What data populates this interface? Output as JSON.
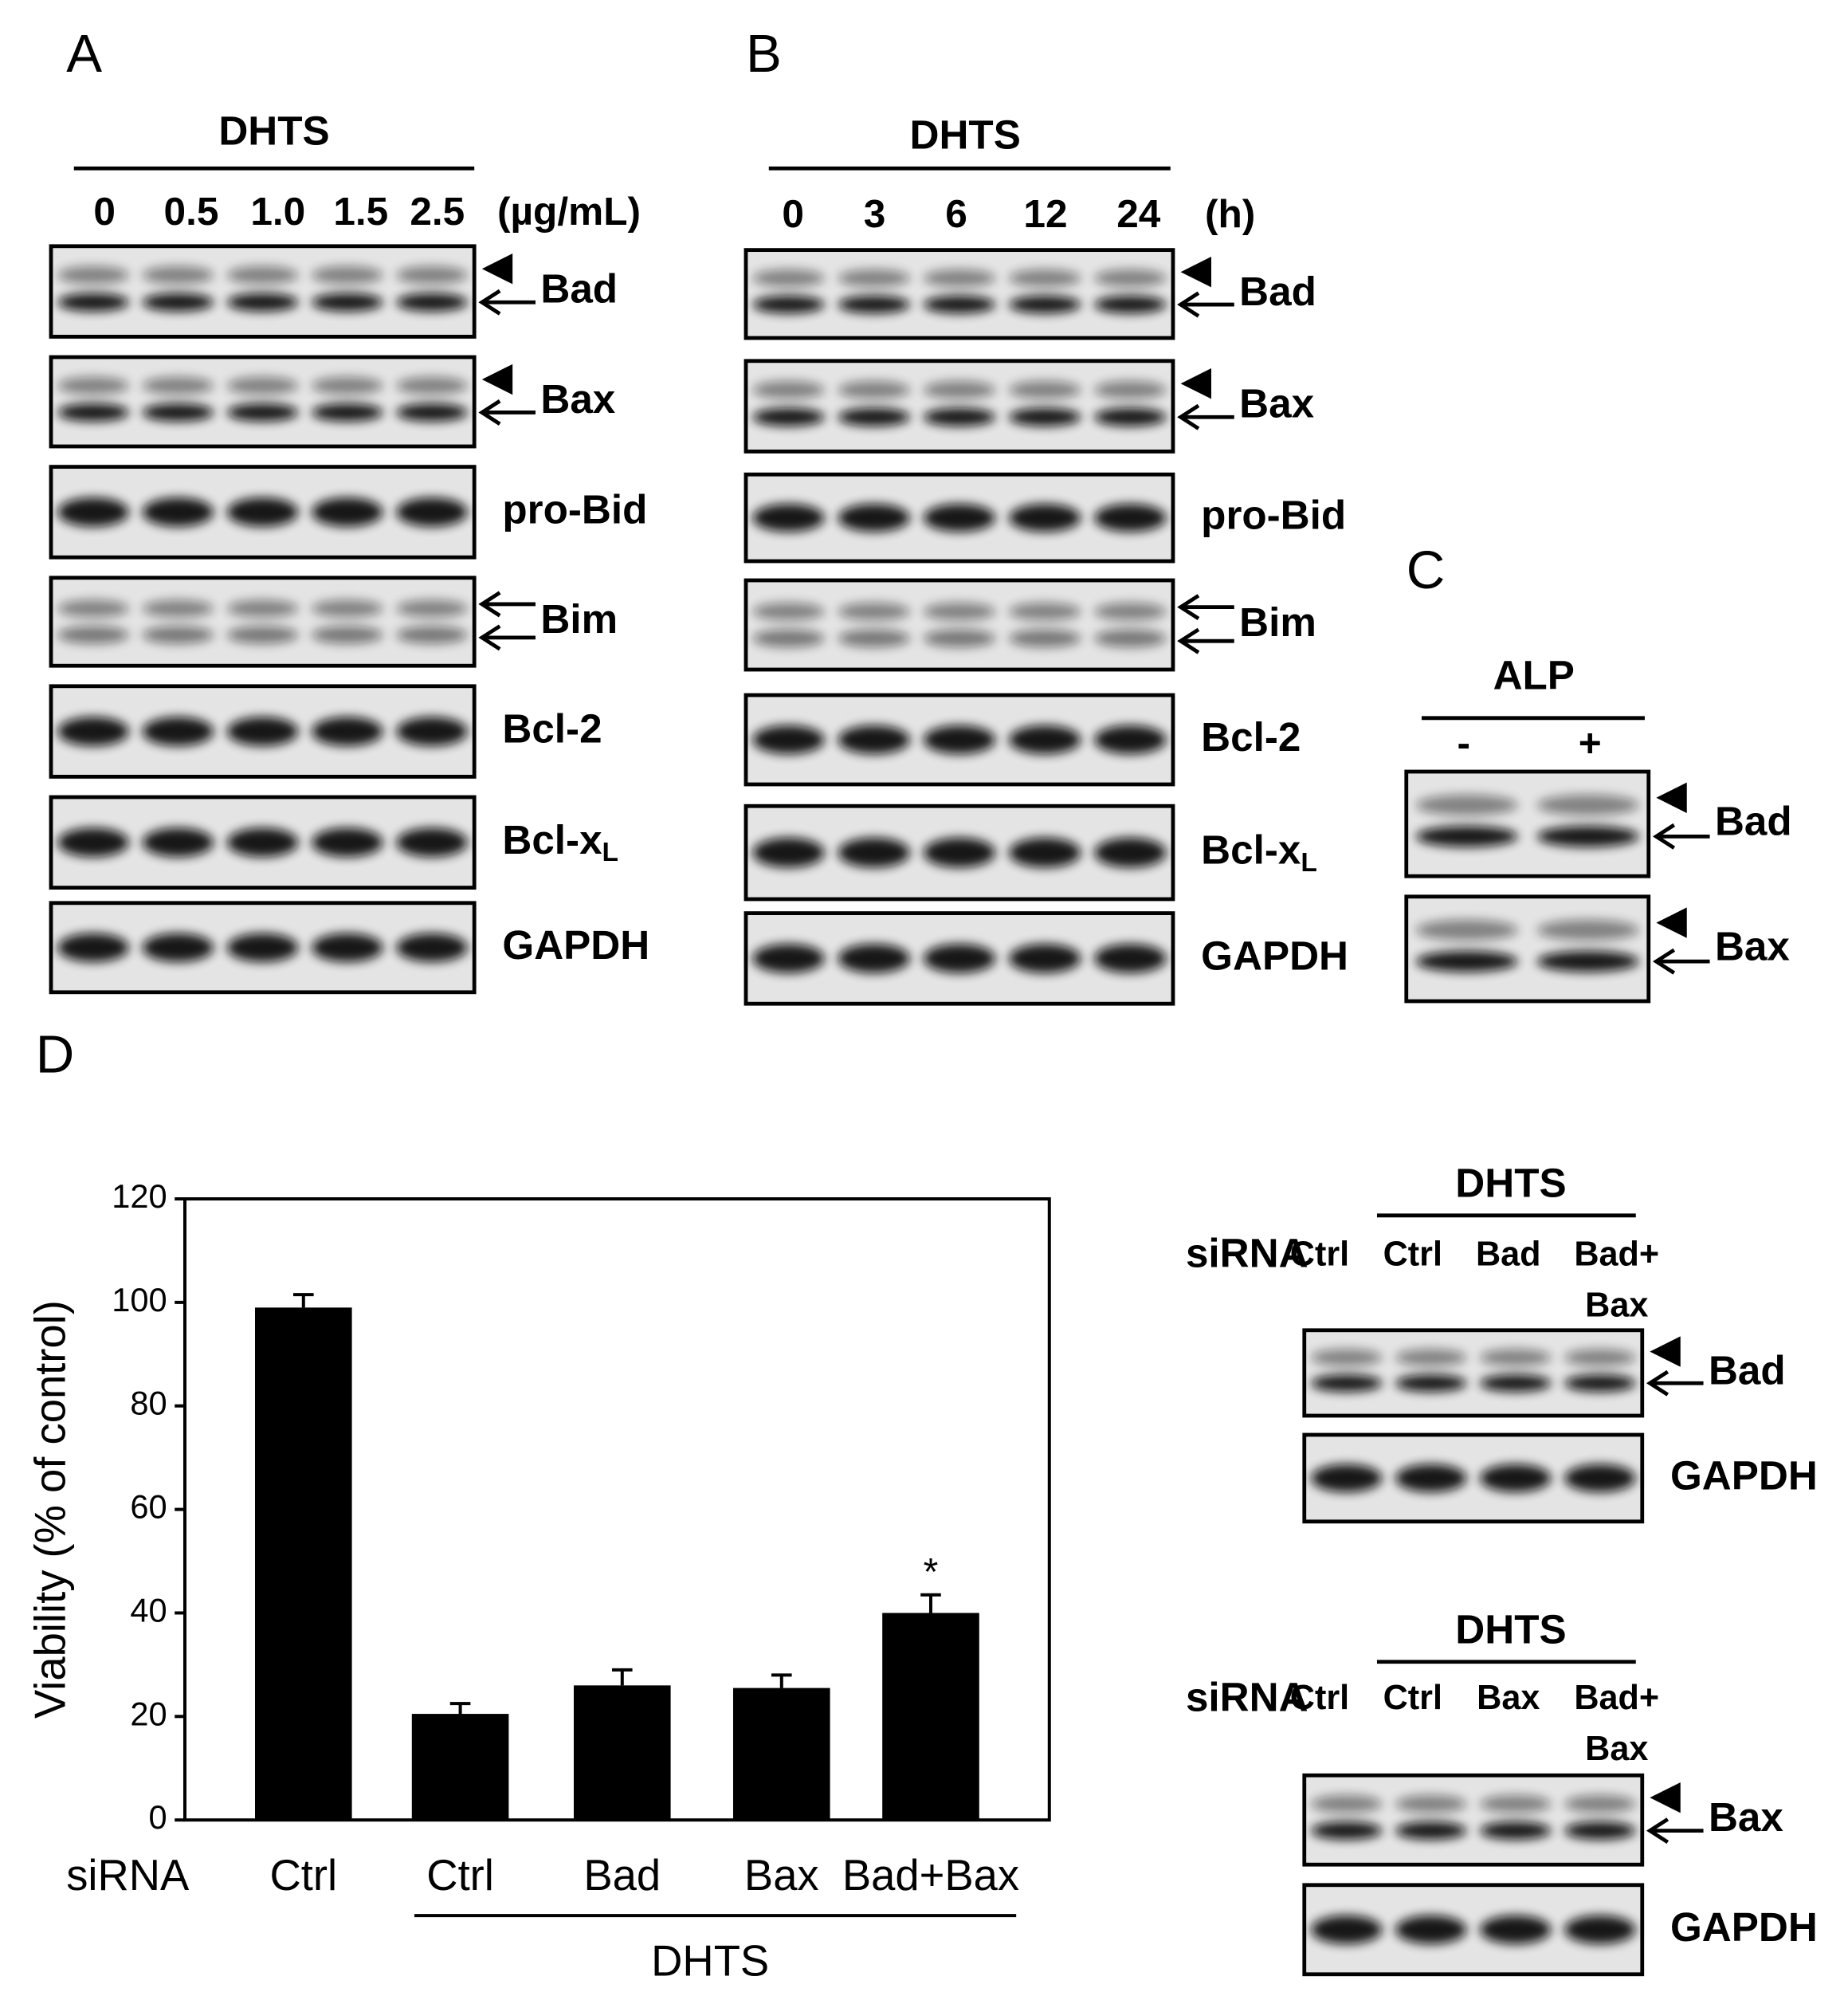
{
  "panel_labels": [
    "A",
    "B",
    "C",
    "D"
  ],
  "blots": [
    {
      "header": "DHTS",
      "lanes": [
        "0",
        "0.5",
        "1.0",
        "1.5",
        "2.5"
      ],
      "unit": "(µg/mL)",
      "rows": [
        {
          "label": "Bad"
        },
        {
          "label": "Bax"
        },
        {
          "label": "pro-Bid"
        },
        {
          "label": "Bim"
        },
        {
          "label": "Bcl-2"
        },
        {
          "label": "Bcl-x",
          "subscript": "L"
        },
        {
          "label": "GAPDH"
        }
      ]
    },
    {
      "header": "DHTS",
      "lanes": [
        "0",
        "3",
        "6",
        "12",
        "24"
      ],
      "unit": "(h)",
      "rows": [
        {
          "label": "Bad"
        },
        {
          "label": "Bax"
        },
        {
          "label": "pro-Bid"
        },
        {
          "label": "Bim"
        },
        {
          "label": "Bcl-2"
        },
        {
          "label": "Bcl-x",
          "subscript": "L"
        },
        {
          "label": "GAPDH"
        }
      ]
    },
    {
      "header": "ALP",
      "lanes": [
        "-",
        "+"
      ],
      "rows": [
        {
          "label": "Bad"
        },
        {
          "label": "Bax"
        }
      ]
    },
    {
      "header": "DHTS",
      "row_title": "siRNA",
      "lanes": [
        [
          "Ctrl"
        ],
        [
          "Ctrl"
        ],
        [
          "Bad"
        ],
        [
          "Bad+",
          "Bax"
        ]
      ],
      "rows": [
        {
          "label": "Bad"
        },
        {
          "label": "GAPDH"
        }
      ]
    },
    {
      "header": "DHTS",
      "row_title": "siRNA",
      "lanes": [
        [
          "Ctrl"
        ],
        [
          "Ctrl"
        ],
        [
          "Bax"
        ],
        [
          "Bad+",
          "Bax"
        ]
      ],
      "rows": [
        {
          "label": "Bax"
        },
        {
          "label": "GAPDH"
        }
      ]
    }
  ],
  "chart_data": {
    "type": "bar",
    "ylabel": "Viability (% of control)",
    "xlabel": "siRNA",
    "group_label": "DHTS",
    "categories": [
      "Ctrl",
      "Ctrl",
      "Bad",
      "Bax",
      "Bad+Bax"
    ],
    "values": [
      99,
      20.5,
      26,
      25.5,
      40
    ],
    "errors": [
      2.5,
      2,
      3,
      2.5,
      3.5
    ],
    "color": "#000000",
    "ylim": [
      0,
      120
    ],
    "yticks": [
      0,
      20,
      40,
      60,
      80,
      100,
      120
    ],
    "annotations": [
      {
        "text": "*",
        "category": "Bad+Bax"
      }
    ]
  }
}
